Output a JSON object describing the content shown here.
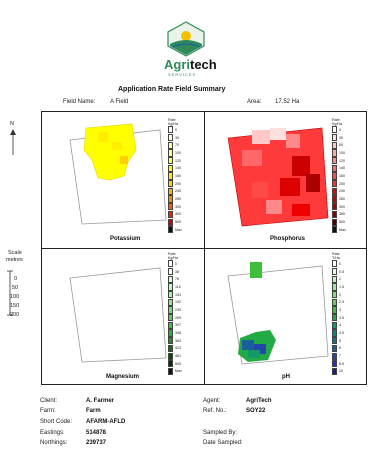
{
  "logo": {
    "brand_left": "Agri",
    "brand_right": "tech",
    "tagline": "SERVICES"
  },
  "title": "Application Rate Field Summary",
  "header": {
    "field_label": "Field Name:",
    "field_value": "A Field",
    "area_label": "Area:",
    "area_value": "17.52 Ha"
  },
  "north": "N",
  "scale": {
    "label1": "Scale",
    "label2": "metres",
    "ticks": [
      "0",
      "50",
      "100",
      "150",
      "200"
    ]
  },
  "panels": [
    {
      "name": "Potassium",
      "legend_title": "Rate\nKg/Ha",
      "values": [
        "0",
        "30",
        "70",
        "100",
        "120",
        "140",
        "160",
        "200",
        "240",
        "280",
        "300",
        "400",
        "500",
        "Max"
      ],
      "colors": [
        "#ffffff",
        "#ffffd8",
        "#ffffb3",
        "#ffff88",
        "#ffff55",
        "#ffff00",
        "#ffee00",
        "#ffd000",
        "#ffb000",
        "#ff8800",
        "#ff5a00",
        "#ff2000",
        "#cc0000",
        "#111111"
      ]
    },
    {
      "name": "Phosphorus",
      "legend_title": "Rate\nKg/Ha",
      "values": [
        "0",
        "30",
        "60",
        "100",
        "120",
        "140",
        "160",
        "200",
        "240",
        "280",
        "300",
        "380",
        "500",
        "Max"
      ],
      "colors": [
        "#ffffff",
        "#ffe0e0",
        "#ffc8c8",
        "#ffa8a8",
        "#ff8888",
        "#ff6868",
        "#ff4a4a",
        "#ff2a2a",
        "#ee0000",
        "#cc0000",
        "#aa0000",
        "#880000",
        "#550000",
        "#111111"
      ]
    },
    {
      "name": "Magnesium",
      "legend_title": "Rate\nKg/Ha",
      "values": [
        "0",
        "38",
        "76",
        "115",
        "153",
        "192",
        "230",
        "269",
        "307",
        "346",
        "384",
        "423",
        "461",
        "500",
        "Max"
      ],
      "colors": [
        "#ffffff",
        "#e8ffe8",
        "#d0ffd0",
        "#b8ffb8",
        "#a0f5a0",
        "#88ee88",
        "#70e070",
        "#58d058",
        "#40c040",
        "#30b030",
        "#209020",
        "#107010",
        "#005000",
        "#003000",
        "#111111"
      ]
    },
    {
      "name": "pH",
      "legend_title": "Rate\nT/Ha",
      "values": [
        "0",
        "0.5",
        "1",
        "1.5",
        "2",
        "2.5",
        "3",
        "3.5",
        "4",
        "4.5",
        "5",
        "6",
        "7",
        "8.5",
        "10"
      ],
      "colors": [
        "#ffffff",
        "#e0ffe0",
        "#c0f5c0",
        "#a0eba0",
        "#80e080",
        "#5ed15e",
        "#3cc03c",
        "#22aa44",
        "#119966",
        "#0a8877",
        "#0a7788",
        "#1a5f99",
        "#2447aa",
        "#2a2fbb",
        "#1a1a88"
      ]
    }
  ],
  "footer": {
    "client_label": "Client:",
    "client_value": "A. Farmer",
    "farm_label": "Farm:",
    "farm_value": "Farm",
    "short_code_label": "Short Code:",
    "short_code_value": "AFARM-AFLD",
    "eastings_label": "Eastings:",
    "eastings_value": "514878",
    "northings_label": "Northings:",
    "northings_value": "239737",
    "agent_label": "Agent:",
    "agent_value": "AgriTech",
    "ref_label": "Ref. No.:",
    "ref_value": "SOY22",
    "sampled_by_label": "Sampled By:",
    "sampled_by_value": "",
    "date_sampled_label": "Date Sampled:",
    "date_sampled_value": ""
  },
  "colors": {
    "logo_green": "#2e8b57",
    "logo_blue": "#1f5fa8",
    "logo_yellow": "#f2c200"
  }
}
